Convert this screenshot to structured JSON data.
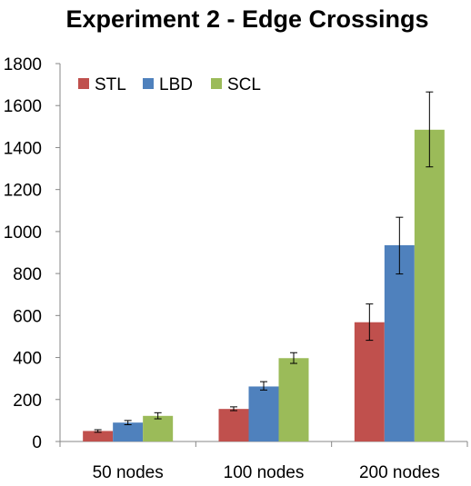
{
  "chart_data": {
    "type": "bar",
    "title": "Experiment 2 - Edge Crossings",
    "xlabel": "",
    "ylabel": "",
    "categories": [
      "50 nodes",
      "100 nodes",
      "200 nodes"
    ],
    "series": [
      {
        "name": "STL",
        "color": "#C0504D",
        "values": [
          50,
          155,
          568
        ],
        "error": [
          [
            44,
            56
          ],
          [
            147,
            165
          ],
          [
            482,
            655
          ]
        ]
      },
      {
        "name": "LBD",
        "color": "#4F81BD",
        "values": [
          90,
          262,
          935
        ],
        "error": [
          [
            80,
            100
          ],
          [
            245,
            285
          ],
          [
            798,
            1068
          ]
        ]
      },
      {
        "name": "SCL",
        "color": "#9BBB59",
        "values": [
          122,
          397,
          1485
        ],
        "error": [
          [
            108,
            137
          ],
          [
            372,
            423
          ],
          [
            1308,
            1665
          ]
        ]
      }
    ],
    "ylim": [
      0,
      1800
    ],
    "yticks": [
      "0",
      "200",
      "400",
      "600",
      "800",
      "1000",
      "1200",
      "1400",
      "1600",
      "1800"
    ],
    "grid": false,
    "legend": "top-left"
  }
}
